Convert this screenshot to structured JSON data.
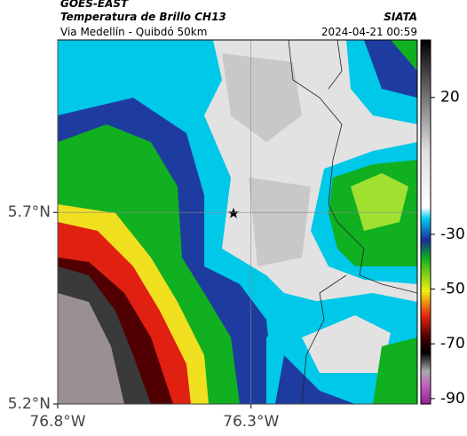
{
  "header": {
    "satellite": "GOES-EAST",
    "product": "Temperatura de Brillo CH13",
    "source": "SIATA",
    "route": "Via Medellín - Quibdó 50km",
    "timestamp": "2024-04-21 00:59"
  },
  "map": {
    "xlim": [
      -76.8,
      -75.87
    ],
    "ylim": [
      5.2,
      6.15
    ],
    "xticks": [
      {
        "value": -76.8,
        "label": "76.8°W"
      },
      {
        "value": -76.3,
        "label": "76.3°W"
      }
    ],
    "yticks": [
      {
        "value": 5.2,
        "label": "5.2°N"
      },
      {
        "value": 5.7,
        "label": "5.7°N"
      }
    ],
    "grid": true
  },
  "colorbar": {
    "lim": [
      -92,
      41
    ],
    "ticks": [
      20,
      -30,
      -50,
      -70,
      -90
    ]
  }
}
